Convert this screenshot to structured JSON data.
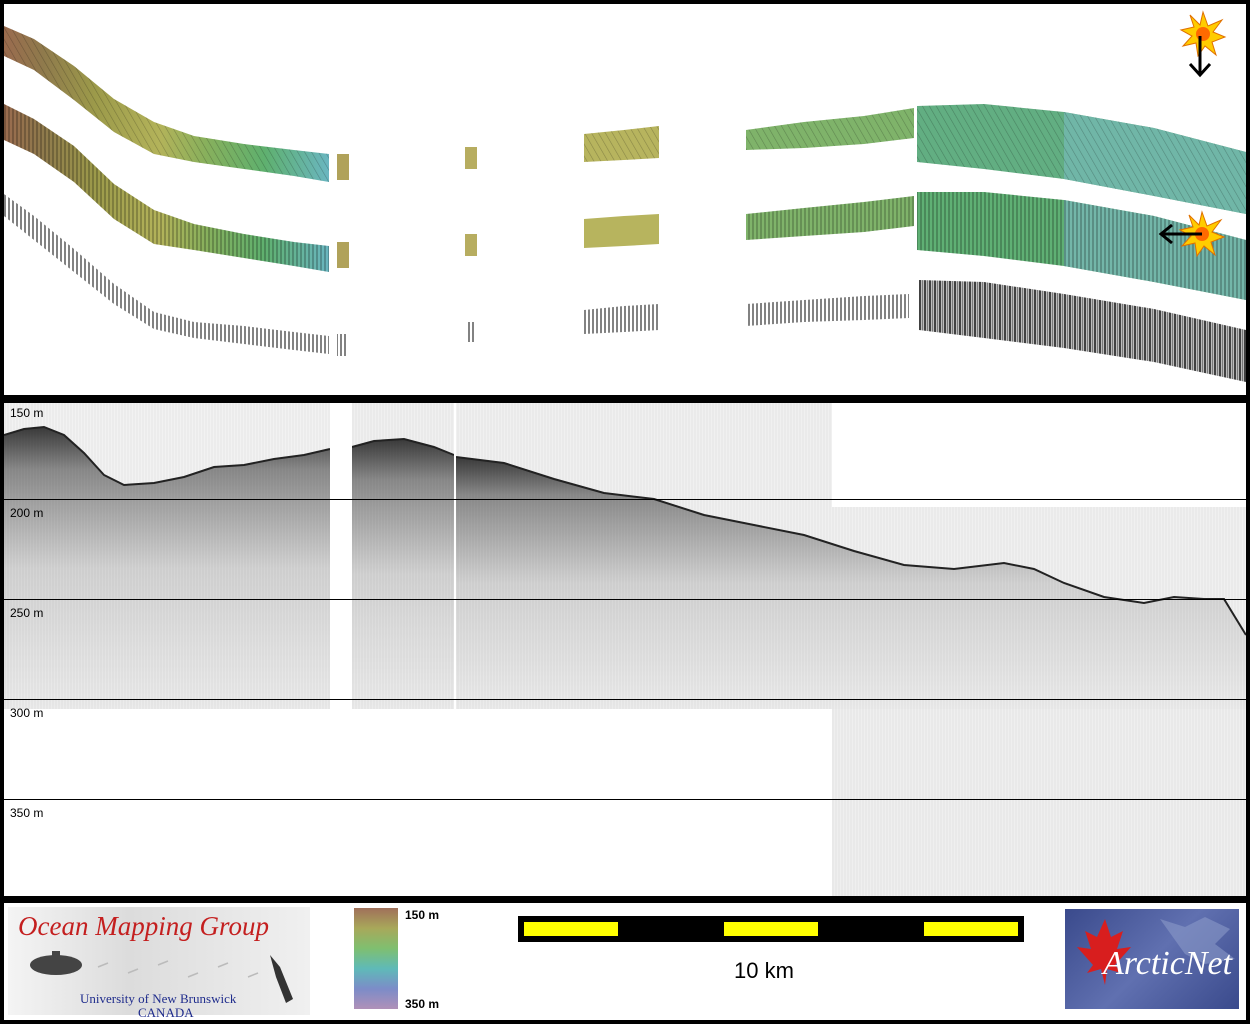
{
  "depth_labels": [
    "150 m",
    "200 m",
    "250 m",
    "300 m",
    "350 m"
  ],
  "colorbar": {
    "top_label": "150 m",
    "bottom_label": "350 m"
  },
  "scale_bar": {
    "label": "10 km"
  },
  "logos": {
    "omg": {
      "title": "Ocean Mapping Group",
      "sub1": "University of New Brunswick",
      "sub2": "CANADA"
    },
    "arcticnet": {
      "text": "ArcticNet"
    }
  },
  "colors": {
    "brown": "#9a6b4e",
    "olive": "#9c9a4a",
    "green": "#5fb06e",
    "teal": "#6ab6c0",
    "yellow": "#ffff00",
    "omg_red": "#c41f1f",
    "omg_blue": "#1f2c8c"
  },
  "icons": [
    "sun-light-source-icon",
    "down-arrow-icon",
    "left-arrow-icon"
  ]
}
